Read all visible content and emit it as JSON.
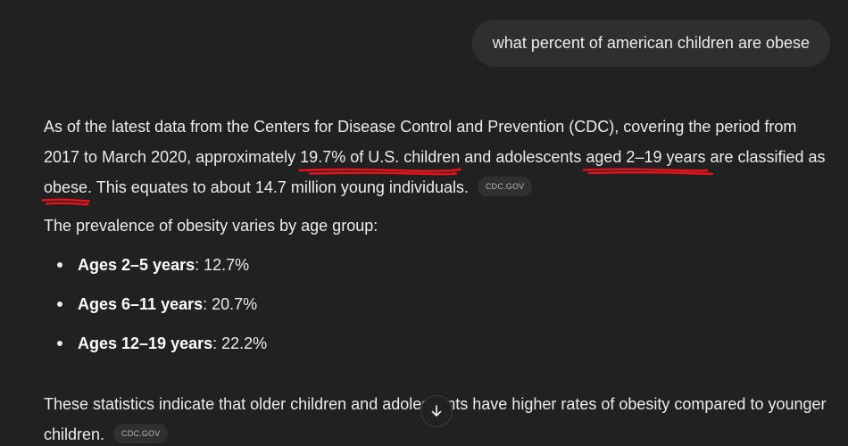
{
  "user_message": "what percent of american children are obese",
  "answer": {
    "p1_part1": "As of the latest data from the Centers for Disease Control and Prevention (CDC), covering the period from 2017 to March 2020, approximately ",
    "p1_hl1": "19.7% of U.S. children",
    "p1_part2": " and adolescents ",
    "p1_hl2": "aged 2–19 years",
    "p1_part3": " are classified as ",
    "p1_hl3": "obese",
    "p1_part4": ". This equates to about 14.7 million young individuals.",
    "p1_source": "CDC.GOV",
    "p2": "The prevalence of obesity varies by age group:",
    "age_groups": [
      {
        "label": "Ages 2–5 years",
        "value": ": 12.7%"
      },
      {
        "label": "Ages 6–11 years",
        "value": ": 20.7%"
      },
      {
        "label": "Ages 12–19 years",
        "value": ": 22.2%"
      }
    ],
    "p3": "These statistics indicate that older children and adolescents have higher rates of obesity compared to younger children.",
    "p3_source": "CDC.GOV"
  },
  "colors": {
    "background": "#212121",
    "user_bubble": "#2f2f2f",
    "text": "#ececec",
    "annotation": "#e3131c"
  },
  "icons": {
    "scroll_down": "arrow-down-icon"
  }
}
